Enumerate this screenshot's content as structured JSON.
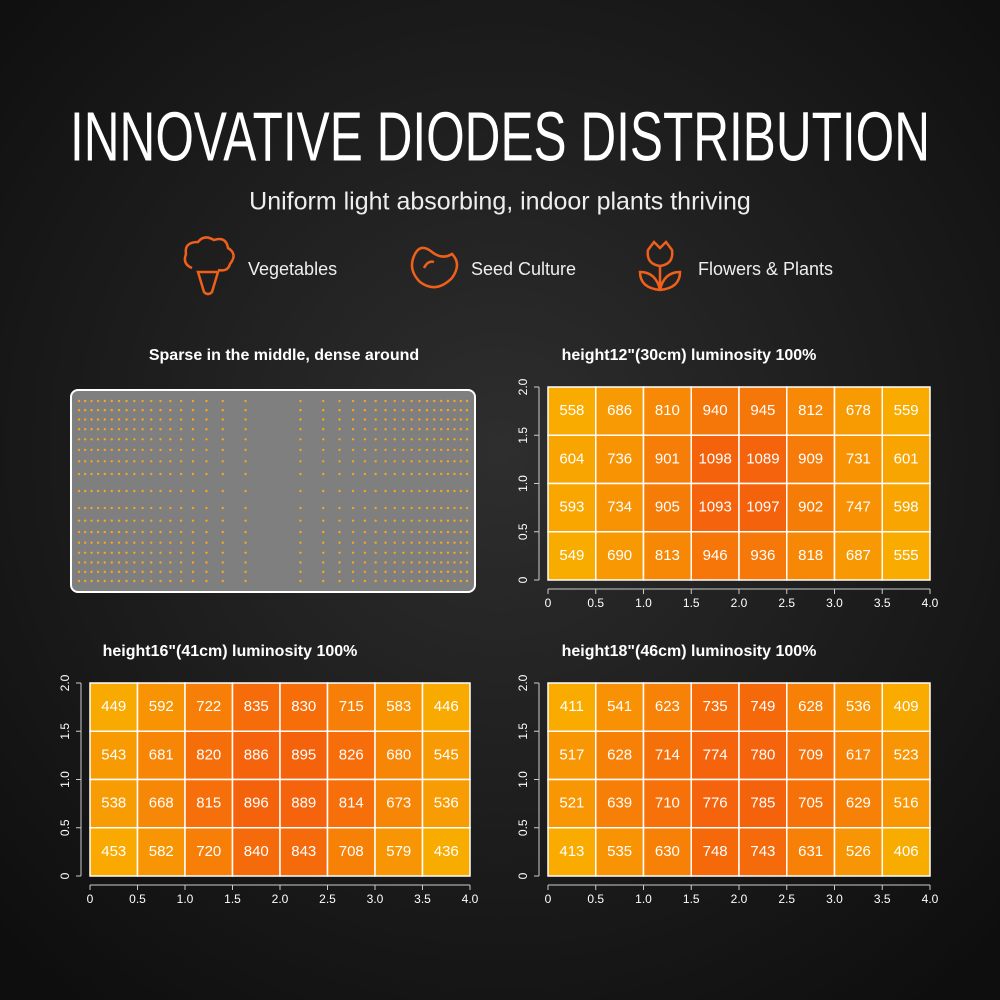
{
  "header": {
    "title": "INNOVATIVE DIODES DISTRIBUTION",
    "subtitle": "Uniform light absorbing, indoor plants thriving",
    "features": [
      "Vegetables",
      "Seed Culture",
      "Flowers & Plants"
    ]
  },
  "diagram": {
    "title": "Sparse in the middle, dense around"
  },
  "chart_data": [
    {
      "type": "heatmap",
      "title": "height12\"(30cm)   luminosity 100%",
      "xlim": [
        0,
        4
      ],
      "ylim": [
        0,
        2
      ],
      "xticks": [
        0,
        0.5,
        {
          "value": 1,
          "label": "1.0"
        },
        1.5,
        {
          "value": 2,
          "label": "2.0"
        },
        2.5,
        {
          "value": 3,
          "label": "3.0"
        },
        3.5,
        {
          "value": 4,
          "label": "4.0"
        }
      ],
      "yticks": [
        0,
        0.5,
        {
          "value": 1,
          "label": "1.0"
        },
        1.5,
        {
          "value": 2,
          "label": "2.0"
        }
      ],
      "values": [
        [
          558,
          686,
          810,
          940,
          945,
          812,
          678,
          559
        ],
        [
          604,
          736,
          901,
          1098,
          1089,
          909,
          731,
          601
        ],
        [
          593,
          734,
          905,
          1093,
          1097,
          902,
          747,
          598
        ],
        [
          549,
          690,
          813,
          946,
          936,
          818,
          687,
          555
        ]
      ]
    },
    {
      "type": "heatmap",
      "title": "height16\"(41cm)   luminosity 100%",
      "xlim": [
        0,
        4
      ],
      "ylim": [
        0,
        2
      ],
      "xticks": [
        0,
        0.5,
        {
          "value": 1,
          "label": "1.0"
        },
        1.5,
        {
          "value": 2,
          "label": "2.0"
        },
        2.5,
        {
          "value": 3,
          "label": "3.0"
        },
        3.5,
        {
          "value": 4,
          "label": "4.0"
        }
      ],
      "yticks": [
        0,
        0.5,
        {
          "value": 1,
          "label": "1.0"
        },
        1.5,
        {
          "value": 2,
          "label": "2.0"
        }
      ],
      "values": [
        [
          449,
          592,
          722,
          835,
          830,
          715,
          583,
          446
        ],
        [
          543,
          681,
          820,
          886,
          895,
          826,
          680,
          545
        ],
        [
          538,
          668,
          815,
          896,
          889,
          814,
          673,
          536
        ],
        [
          453,
          582,
          720,
          840,
          843,
          708,
          579,
          436
        ]
      ]
    },
    {
      "type": "heatmap",
      "title": "height18\"(46cm)   luminosity 100%",
      "xlim": [
        0,
        4
      ],
      "ylim": [
        0,
        2
      ],
      "xticks": [
        0,
        0.5,
        {
          "value": 1,
          "label": "1.0"
        },
        1.5,
        {
          "value": 2,
          "label": "2.0"
        },
        2.5,
        {
          "value": 3,
          "label": "3.0"
        },
        3.5,
        {
          "value": 4,
          "label": "4.0"
        }
      ],
      "yticks": [
        0,
        0.5,
        {
          "value": 1,
          "label": "1.0"
        },
        1.5,
        {
          "value": 2,
          "label": "2.0"
        }
      ],
      "values": [
        [
          411,
          541,
          623,
          735,
          749,
          628,
          536,
          409
        ],
        [
          517,
          628,
          714,
          774,
          780,
          709,
          617,
          523
        ],
        [
          521,
          639,
          710,
          776,
          785,
          705,
          629,
          516
        ],
        [
          413,
          535,
          630,
          748,
          743,
          631,
          526,
          406
        ]
      ]
    }
  ]
}
